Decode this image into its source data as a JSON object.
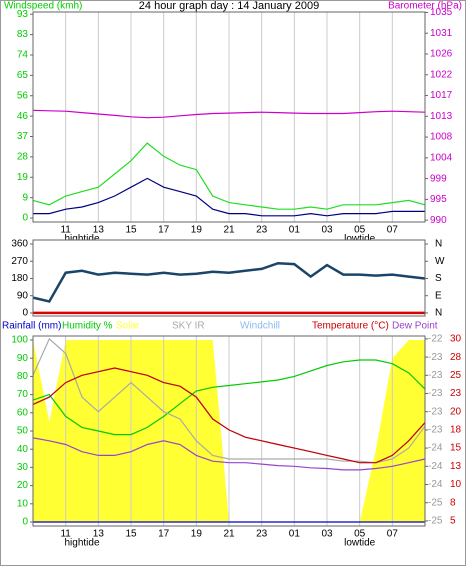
{
  "chart_data": [
    {
      "type": "line",
      "title": "24 hour graph day : 14 January 2009",
      "ylabel": "Windspeed (kmh)",
      "y2label": "Barometer (hPa)",
      "ycolor": "#00cc00",
      "y2color": "#cc00cc",
      "x": [
        9,
        10,
        11,
        12,
        13,
        14,
        15,
        16,
        17,
        18,
        19,
        20,
        21,
        22,
        23,
        24,
        25,
        26,
        27,
        28,
        29,
        30,
        31,
        32,
        33
      ],
      "xlim": [
        9,
        33
      ],
      "xticks": [
        11,
        13,
        15,
        17,
        19,
        21,
        23,
        {
          "value": 25,
          "label": "01"
        },
        {
          "value": 27,
          "label": "03"
        },
        {
          "value": 29,
          "label": "05"
        },
        {
          "value": 31,
          "label": "07"
        }
      ],
      "grid": true,
      "ylim": [
        -1.8,
        93.5
      ],
      "yticks": [
        0,
        {
          "value": 9.25,
          "label": "9"
        },
        {
          "value": 18.5,
          "label": "19"
        },
        {
          "value": 27.75,
          "label": "28"
        },
        37,
        {
          "value": 46.25,
          "label": "46"
        },
        {
          "value": 55.5,
          "label": "56"
        },
        {
          "value": 64.75,
          "label": "65"
        },
        74,
        {
          "value": 83.25,
          "label": "83"
        },
        {
          "value": 92.5,
          "label": "93"
        }
      ],
      "y2lim": [
        989.6,
        1035.1
      ],
      "y2ticks": [
        990,
        {
          "value": 994.5,
          "label": "995"
        },
        999,
        {
          "value": 1003.5,
          "label": "1004"
        },
        1008,
        {
          "value": 1012.5,
          "label": "1013"
        },
        1017,
        {
          "value": 1021.5,
          "label": "1022"
        },
        1026,
        {
          "value": 1030.5,
          "label": "1031"
        },
        1035
      ],
      "series": [
        {
          "color": "#22dd22",
          "values": [
            8,
            6,
            10,
            12,
            14,
            20,
            26,
            34,
            28,
            24,
            22,
            10,
            7,
            6,
            5,
            4,
            4,
            5,
            4,
            6,
            6,
            6,
            7,
            8,
            6
          ]
        },
        {
          "color": "#000080",
          "values": [
            2,
            2,
            4,
            5,
            7,
            10,
            14,
            18,
            14,
            12,
            10,
            4,
            2,
            2,
            1,
            1,
            1,
            2,
            1,
            2,
            2,
            2,
            3,
            3,
            3
          ]
        },
        {
          "color": "#cc00cc",
          "axis": "y2",
          "values": [
            1013.8,
            1013.7,
            1013.6,
            1013.3,
            1013,
            1012.7,
            1012.4,
            1012.2,
            1012.3,
            1012.6,
            1012.9,
            1013.1,
            1013.2,
            1013.3,
            1013.4,
            1013.3,
            1013.2,
            1013.1,
            1013.1,
            1013.1,
            1013.3,
            1013.5,
            1013.6,
            1013.5,
            1013.4
          ]
        }
      ],
      "annotations": [
        {
          "text": "hightide",
          "x": 12
        },
        {
          "text": "lowtide",
          "x": 29
        }
      ]
    },
    {
      "type": "line",
      "x": [
        9,
        10,
        11,
        12,
        13,
        14,
        15,
        16,
        17,
        18,
        19,
        20,
        21,
        22,
        23,
        24,
        25,
        26,
        27,
        28,
        29,
        30,
        31,
        32,
        33
      ],
      "xlim": [
        9,
        33
      ],
      "ylim": [
        -16,
        381
      ],
      "yticks": [
        0,
        90,
        180,
        270,
        360
      ],
      "y2lim": [
        -16,
        381
      ],
      "y2ticks": [
        {
          "value": 0,
          "label": "N"
        },
        {
          "value": 90,
          "label": "E"
        },
        {
          "value": 180,
          "label": "S"
        },
        {
          "value": 270,
          "label": "W"
        },
        {
          "value": 360,
          "label": "N"
        }
      ],
      "ycolor": "#000000",
      "y2color": "#000000",
      "series": [
        {
          "color": "#1b4468",
          "values": [
            80,
            60,
            210,
            220,
            200,
            210,
            205,
            200,
            210,
            200,
            205,
            215,
            210,
            220,
            230,
            260,
            255,
            190,
            250,
            200,
            200,
            195,
            200,
            190,
            180
          ]
        },
        {
          "color": "#dd0000",
          "values": [
            0,
            0,
            0,
            0,
            0,
            0,
            0,
            0,
            0,
            0,
            0,
            0,
            0,
            0,
            0,
            0,
            0,
            0,
            0,
            0,
            0,
            0,
            0,
            0,
            0
          ]
        }
      ]
    },
    {
      "type": "line",
      "x": [
        9,
        10,
        11,
        12,
        13,
        14,
        15,
        16,
        17,
        18,
        19,
        20,
        21,
        22,
        23,
        24,
        25,
        26,
        27,
        28,
        29,
        30,
        31,
        32,
        33
      ],
      "xlim": [
        9,
        33
      ],
      "xticks": [
        11,
        13,
        15,
        17,
        19,
        21,
        23,
        {
          "value": 25,
          "label": "01"
        },
        {
          "value": 27,
          "label": "03"
        },
        {
          "value": 29,
          "label": "05"
        },
        {
          "value": 31,
          "label": "07"
        }
      ],
      "grid": true,
      "ylim": [
        -2.2,
        102.2
      ],
      "yticks": [
        0,
        10,
        20,
        30,
        40,
        50,
        60,
        70,
        80,
        90,
        100
      ],
      "ycolor": "#00cc00",
      "y2lim": [
        4.3,
        30.4
      ],
      "y2ticks": [
        5,
        {
          "value": 7.5,
          "label": "8"
        },
        10,
        {
          "value": 12.5,
          "label": "13"
        },
        15,
        {
          "value": 17.5,
          "label": "18"
        },
        20,
        {
          "value": 22.5,
          "label": "23"
        },
        25,
        {
          "value": 27.5,
          "label": "28"
        },
        30
      ],
      "y2color": "#cc0000",
      "y3_labels": [
        "-25",
        "-25",
        "-24",
        "-24",
        "-24",
        "-23",
        "-23",
        "-23",
        "-23",
        "-23",
        "-22"
      ],
      "y3color": "#999999",
      "series": [
        {
          "name": "Rainfall (mm)",
          "color": "#0000cc",
          "values": [
            0,
            0,
            0,
            0,
            0,
            0,
            0,
            0,
            0,
            0,
            0,
            0,
            0,
            0,
            0,
            0,
            0,
            0,
            0,
            0,
            0,
            0,
            0,
            0,
            0
          ]
        },
        {
          "name": "Humidity %",
          "color": "#00cc00",
          "values": [
            67,
            70,
            58,
            52,
            50,
            48,
            48,
            52,
            58,
            65,
            72,
            74,
            75,
            76,
            77,
            78,
            80,
            83,
            86,
            88,
            89,
            89,
            87,
            82,
            73
          ]
        },
        {
          "name": "Solar",
          "color": "#ffff33",
          "type": "area",
          "values": [
            100,
            55,
            100,
            100,
            100,
            100,
            100,
            100,
            100,
            100,
            100,
            100,
            0,
            0,
            0,
            0,
            0,
            0,
            0,
            0,
            0,
            40,
            90,
            100,
            100
          ]
        },
        {
          "name": "SKY IR",
          "color": "#aaaaaa",
          "axis": "y2",
          "values": [
            25,
            30,
            28,
            22,
            20,
            22,
            24,
            22,
            20,
            19,
            16,
            14,
            13.5,
            13.5,
            13.5,
            13.5,
            13.5,
            13.5,
            13.5,
            13.2,
            13.2,
            13,
            13.5,
            15,
            18
          ]
        },
        {
          "name": "Windchill",
          "color": "#88bbee",
          "axis": "y2",
          "values": [
            21,
            22,
            24,
            25,
            25.5,
            26,
            25.5,
            25,
            24,
            23.5,
            22,
            19,
            17.5,
            16.5,
            16,
            15.5,
            15,
            14.5,
            14,
            13.5,
            13,
            13,
            14,
            16,
            18.5
          ]
        },
        {
          "name": "Temperature (°C)",
          "color": "#cc0000",
          "axis": "y2",
          "values": [
            21,
            22,
            24,
            25,
            25.5,
            26,
            25.5,
            25,
            24,
            23.5,
            22,
            19,
            17.5,
            16.5,
            16,
            15.5,
            15,
            14.5,
            14,
            13.5,
            13,
            13,
            14,
            16,
            18.5
          ]
        },
        {
          "name": "Dew Point",
          "color": "#9944cc",
          "axis": "y2",
          "values": [
            16.4,
            16,
            15.5,
            14.5,
            14,
            14,
            14.5,
            15.5,
            16,
            15.5,
            14,
            13.2,
            13,
            13,
            12.8,
            12.6,
            12.5,
            12.3,
            12.2,
            12,
            12,
            12.2,
            12.5,
            13,
            13.5
          ]
        }
      ],
      "annotations": [
        {
          "text": "hightide",
          "x": 12
        },
        {
          "text": "lowtide",
          "x": 29
        }
      ]
    }
  ]
}
